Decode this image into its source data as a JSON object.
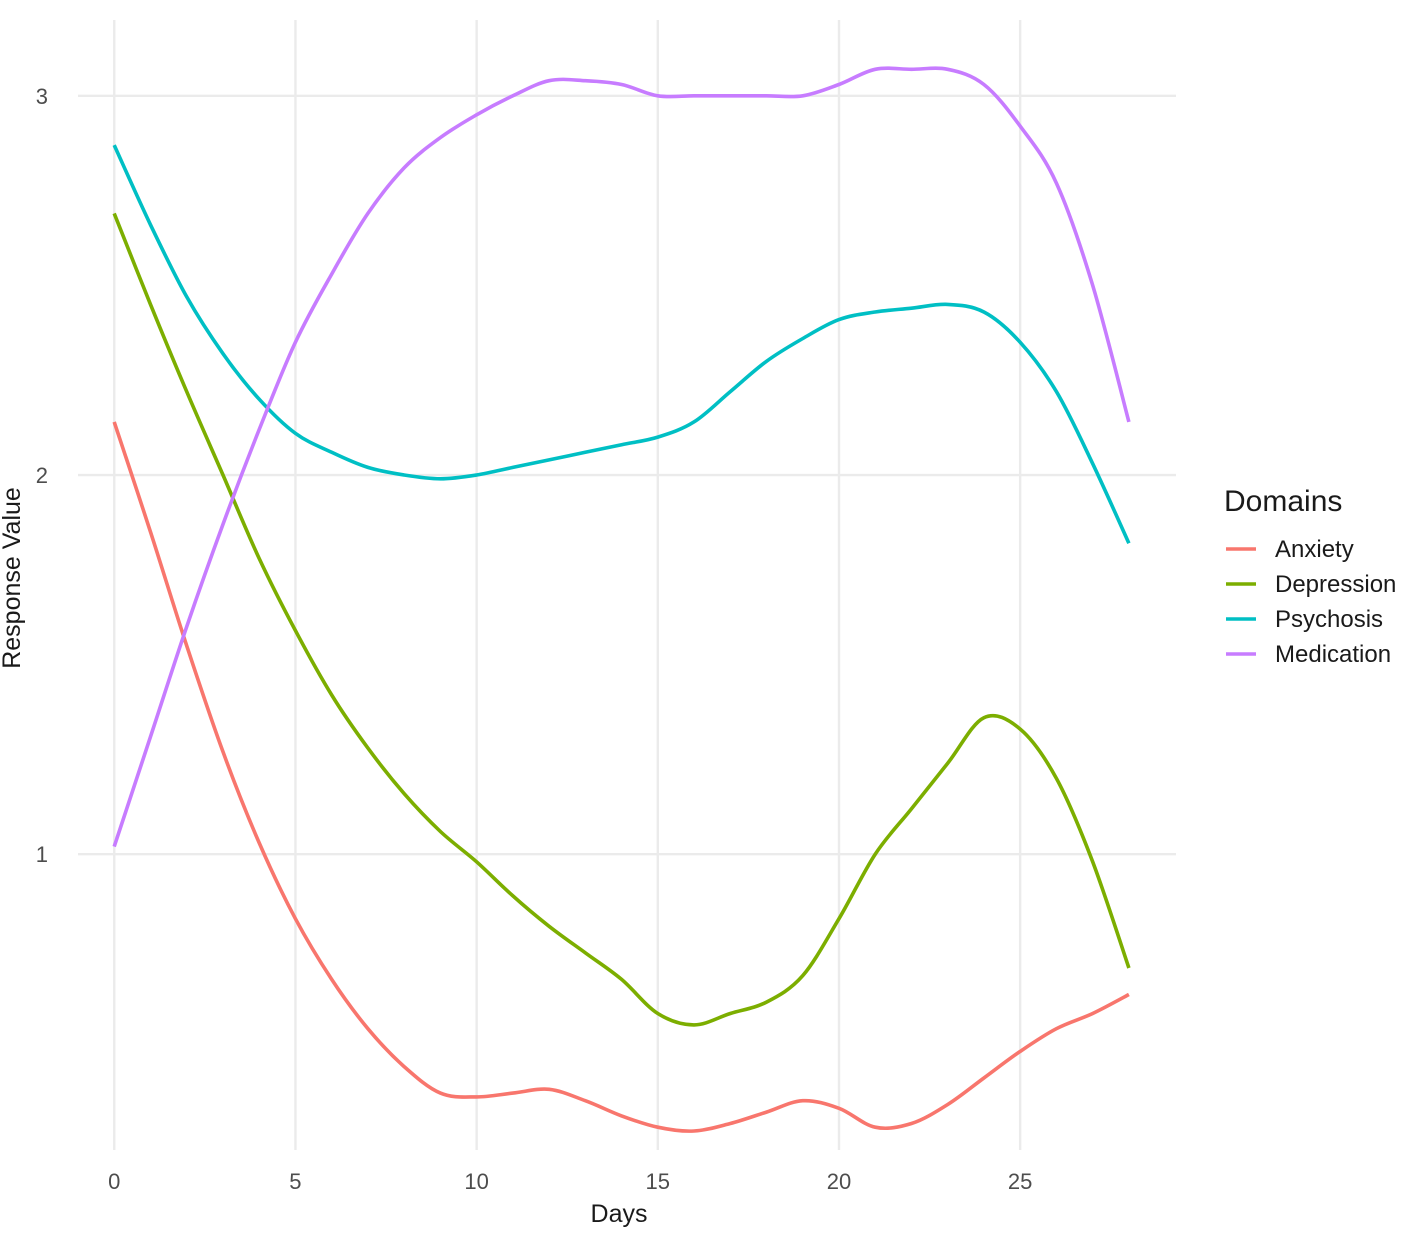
{
  "chart_data": {
    "type": "line",
    "title": "",
    "xlabel": "Days",
    "ylabel": "Response Value",
    "xlim": [
      -1,
      29.3
    ],
    "ylim": [
      0.22,
      3.2
    ],
    "x_ticks": [
      0,
      5,
      10,
      15,
      20,
      25
    ],
    "x_tick_labels": [
      "0",
      "5",
      "10",
      "15",
      "20",
      "25"
    ],
    "y_ticks": [
      1,
      2,
      3
    ],
    "y_tick_labels": [
      "1",
      "2",
      "3"
    ],
    "grid": true,
    "legend": {
      "title": "Domains",
      "position": "right"
    },
    "series": [
      {
        "name": "Anxiety",
        "color": "#F8766D",
        "x": [
          0,
          1,
          2,
          3,
          4,
          5,
          6,
          7,
          8,
          9,
          10,
          11,
          12,
          13,
          14,
          15,
          16,
          17,
          18,
          19,
          20,
          21,
          22,
          23,
          24,
          25,
          26,
          27,
          28
        ],
        "y": [
          2.14,
          1.85,
          1.55,
          1.27,
          1.03,
          0.83,
          0.67,
          0.54,
          0.44,
          0.37,
          0.36,
          0.37,
          0.38,
          0.35,
          0.31,
          0.28,
          0.27,
          0.29,
          0.32,
          0.35,
          0.33,
          0.28,
          0.29,
          0.34,
          0.41,
          0.48,
          0.54,
          0.58,
          0.63
        ]
      },
      {
        "name": "Depression",
        "color": "#7CAE00",
        "x": [
          0,
          1,
          2,
          3,
          4,
          5,
          6,
          7,
          8,
          9,
          10,
          11,
          12,
          13,
          14,
          15,
          16,
          17,
          18,
          19,
          20,
          21,
          22,
          23,
          24,
          25,
          26,
          27,
          28
        ],
        "y": [
          2.69,
          2.45,
          2.22,
          2.0,
          1.78,
          1.59,
          1.42,
          1.28,
          1.16,
          1.06,
          0.98,
          0.89,
          0.81,
          0.74,
          0.67,
          0.58,
          0.55,
          0.58,
          0.61,
          0.68,
          0.83,
          1.0,
          1.12,
          1.24,
          1.36,
          1.33,
          1.2,
          0.98,
          0.7
        ]
      },
      {
        "name": "Psychosis",
        "color": "#00BFC4",
        "x": [
          0,
          1,
          2,
          3,
          4,
          5,
          6,
          7,
          8,
          9,
          10,
          11,
          12,
          13,
          14,
          15,
          16,
          17,
          18,
          19,
          20,
          21,
          22,
          23,
          24,
          25,
          26,
          27,
          28
        ],
        "y": [
          2.87,
          2.66,
          2.47,
          2.32,
          2.2,
          2.11,
          2.06,
          2.02,
          2.0,
          1.99,
          2.0,
          2.02,
          2.04,
          2.06,
          2.08,
          2.1,
          2.14,
          2.22,
          2.3,
          2.36,
          2.41,
          2.43,
          2.44,
          2.45,
          2.43,
          2.35,
          2.22,
          2.03,
          1.82
        ]
      },
      {
        "name": "Medication",
        "color": "#C77CFF",
        "x": [
          0,
          1,
          2,
          3,
          4,
          5,
          6,
          7,
          8,
          9,
          10,
          11,
          12,
          13,
          14,
          15,
          16,
          17,
          18,
          19,
          20,
          21,
          22,
          23,
          24,
          25,
          26,
          27,
          28
        ],
        "y": [
          1.02,
          1.31,
          1.6,
          1.87,
          2.12,
          2.35,
          2.53,
          2.69,
          2.81,
          2.89,
          2.95,
          3.0,
          3.04,
          3.04,
          3.03,
          3.0,
          3.0,
          3.0,
          3.0,
          3.0,
          3.03,
          3.07,
          3.07,
          3.07,
          3.03,
          2.92,
          2.77,
          2.5,
          2.14
        ]
      }
    ]
  }
}
